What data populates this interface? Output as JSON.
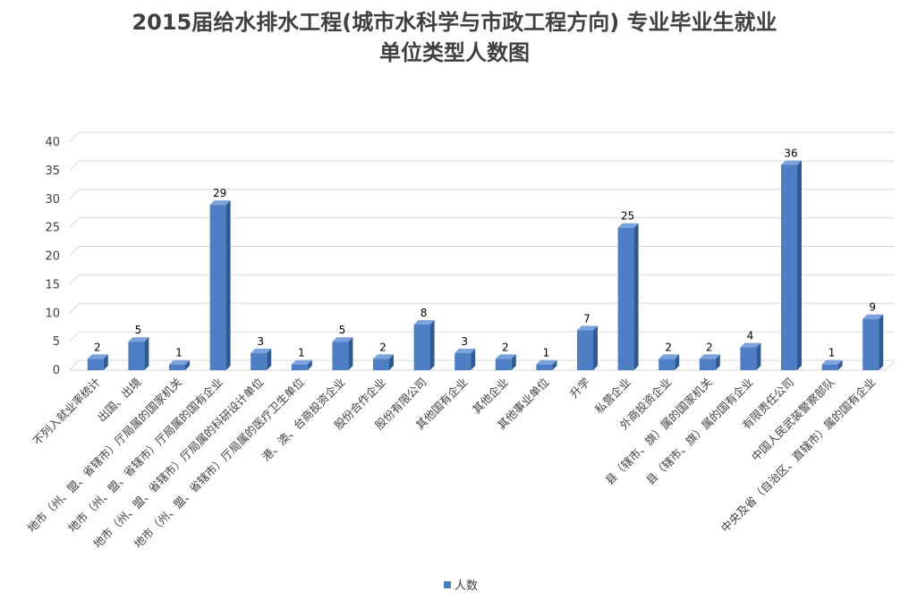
{
  "chart_data": {
    "type": "bar",
    "title_line1": "2015届给水排水工程(城市水科学与市政工程方向) 专业毕业生就业",
    "title_line2": "单位类型人数图",
    "categories": [
      "不列入就业率统计",
      "出国、出境",
      "地市（州、盟、省辖市）厅局属的国家机关",
      "地市（州、盟、省辖市）厅局属的国有企业",
      "地市（州、盟、省辖市）厅局属的科研设计单位",
      "地市（州、盟、省辖市）厅局属的医疗卫生单位",
      "港、澳、台商投资企业",
      "股份合作企业",
      "股份有限公司",
      "其他国有企业",
      "其他企业",
      "其他事业单位",
      "升学",
      "私营企业",
      "外商投资企业",
      "县（辖市、旗）属的国家机关",
      "县（辖市、旗）属的国有企业",
      "有限责任公司",
      "中国人民武装警察部队",
      "中央及省（自治区、直辖市）属的国有企业"
    ],
    "series": [
      {
        "name": "人数",
        "values": [
          2,
          5,
          1,
          29,
          3,
          1,
          5,
          2,
          8,
          3,
          2,
          1,
          7,
          25,
          2,
          2,
          4,
          36,
          1,
          9
        ]
      }
    ],
    "y_ticks": [
      "0",
      "5",
      "10",
      "15",
      "20",
      "25",
      "30",
      "35",
      "40"
    ],
    "ylim": [
      0,
      40
    ],
    "grid": true,
    "legend_position": "bottom",
    "colors": {
      "bar_front": "#4e7fc4",
      "bar_side": "#2e5a96",
      "bar_top": "#7aa3dc",
      "grid": "#d9d9d9",
      "text": "#404040"
    }
  }
}
